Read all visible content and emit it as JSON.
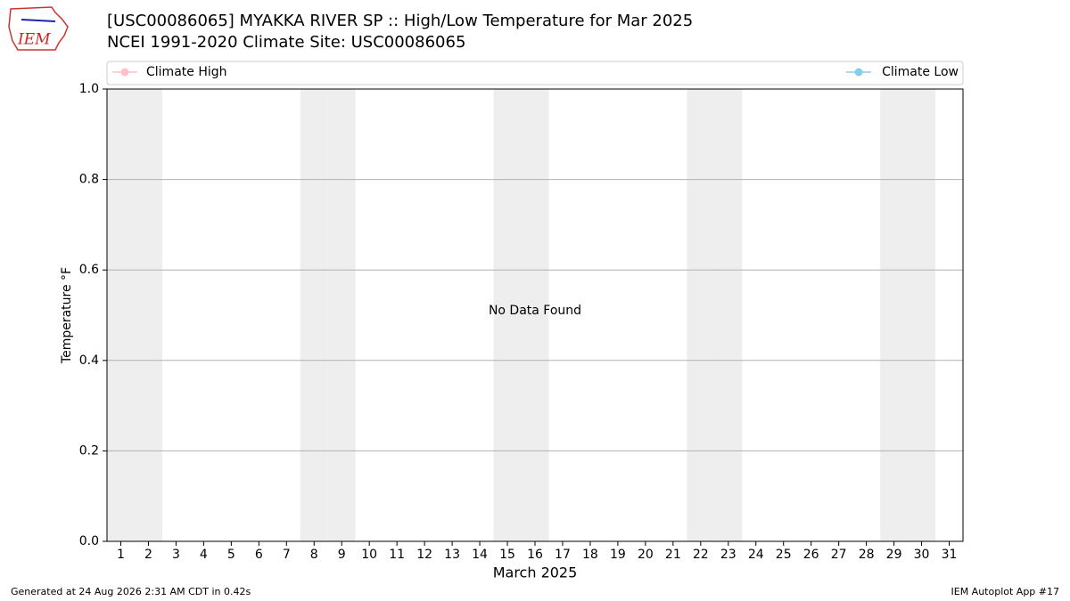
{
  "logo_text": "IEM",
  "footer": {
    "left": "Generated at 24 Aug 2026 2:31 AM CDT in 0.42s",
    "right": "IEM Autoplot App #17"
  },
  "chart_data": {
    "type": "line",
    "title": "[USC00086065] MYAKKA RIVER SP :: High/Low Temperature for Mar 2025",
    "subtitle": "NCEI 1991-2020 Climate Site: USC00086065",
    "x_label": "March 2025",
    "y_label": "Temperature °F",
    "annotation": "No Data Found",
    "x": [
      1,
      2,
      3,
      4,
      5,
      6,
      7,
      8,
      9,
      10,
      11,
      12,
      13,
      14,
      15,
      16,
      17,
      18,
      19,
      20,
      21,
      22,
      23,
      24,
      25,
      26,
      27,
      28,
      29,
      30,
      31
    ],
    "series": [
      {
        "name": "Climate High",
        "color": "#ffc0cb",
        "values": [
          null,
          null,
          null,
          null,
          null,
          null,
          null,
          null,
          null,
          null,
          null,
          null,
          null,
          null,
          null,
          null,
          null,
          null,
          null,
          null,
          null,
          null,
          null,
          null,
          null,
          null,
          null,
          null,
          null,
          null,
          null
        ]
      },
      {
        "name": "Climate Low",
        "color": "#87ceeb",
        "values": [
          null,
          null,
          null,
          null,
          null,
          null,
          null,
          null,
          null,
          null,
          null,
          null,
          null,
          null,
          null,
          null,
          null,
          null,
          null,
          null,
          null,
          null,
          null,
          null,
          null,
          null,
          null,
          null,
          null,
          null,
          null
        ]
      }
    ],
    "shaded_days": [
      1,
      2,
      8,
      9,
      15,
      16,
      22,
      23,
      29,
      30
    ],
    "xlim": [
      0.5,
      31.5
    ],
    "xticks": [
      1,
      2,
      3,
      4,
      5,
      6,
      7,
      8,
      9,
      10,
      11,
      12,
      13,
      14,
      15,
      16,
      17,
      18,
      19,
      20,
      21,
      22,
      23,
      24,
      25,
      26,
      27,
      28,
      29,
      30,
      31
    ],
    "ylim": [
      0,
      1
    ],
    "yticks": [
      {
        "value": 0,
        "label": "0.0"
      },
      {
        "value": 0.2,
        "label": "0.2"
      },
      {
        "value": 0.4,
        "label": "0.4"
      },
      {
        "value": 0.6,
        "label": "0.6"
      },
      {
        "value": 0.8,
        "label": "0.8"
      },
      {
        "value": 1,
        "label": "1.0"
      }
    ],
    "grid": true
  }
}
